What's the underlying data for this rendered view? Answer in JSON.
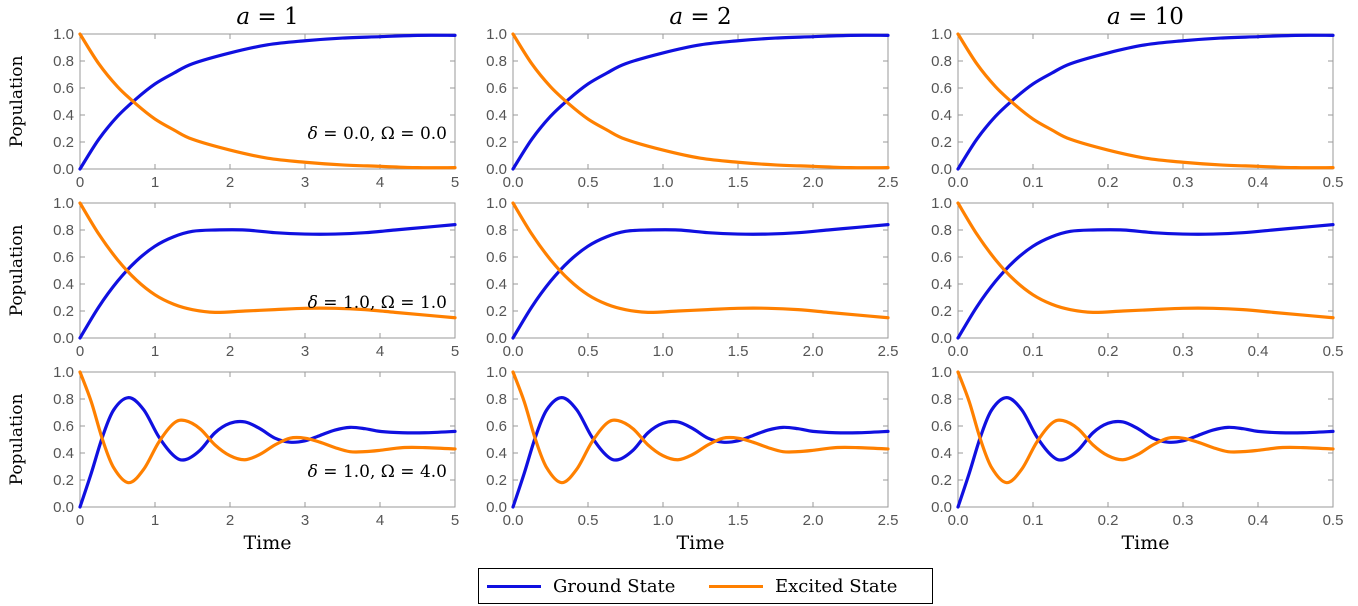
{
  "chart_data": {
    "type": "line",
    "layout": "3x3 grid of line plots",
    "ylabel": "Population",
    "xlabel": "Time",
    "ylim": [
      0.0,
      1.0
    ],
    "yticks": [
      "0.0",
      "0.2",
      "0.4",
      "0.6",
      "0.8",
      "1.0"
    ],
    "columns": [
      {
        "title_var": "a",
        "title_value": "= 1",
        "a": 1,
        "xlim": [
          0,
          5
        ],
        "xticks": [
          0,
          1,
          2,
          3,
          4,
          5
        ],
        "xtick_labels": [
          "0",
          "1",
          "2",
          "3",
          "4",
          "5"
        ]
      },
      {
        "title_var": "a",
        "title_value": "= 2",
        "a": 2,
        "xlim": [
          0,
          2.5
        ],
        "xticks": [
          0,
          0.5,
          1.0,
          1.5,
          2.0,
          2.5
        ],
        "xtick_labels": [
          "0.0",
          "0.5",
          "1.0",
          "1.5",
          "2.0",
          "2.5"
        ]
      },
      {
        "title_var": "a",
        "title_value": "= 10",
        "a": 10,
        "xlim": [
          0,
          0.5
        ],
        "xticks": [
          0,
          0.1,
          0.2,
          0.3,
          0.4,
          0.5
        ],
        "xtick_labels": [
          "0.0",
          "0.1",
          "0.2",
          "0.3",
          "0.4",
          "0.5"
        ]
      }
    ],
    "rows": [
      {
        "annotation_delta": "= 0.0,",
        "annotation_omega": "= 0.0",
        "delta": 0.0,
        "Omega": 0.0,
        "series": [
          {
            "name": "Ground State",
            "color": "#1010e0",
            "x": [
              0.0,
              0.25,
              0.5,
              0.75,
              1.0,
              1.25,
              1.5,
              2.0,
              2.5,
              3.0,
              3.5,
              4.0,
              4.5,
              5.0
            ],
            "y": [
              0.0,
              0.22,
              0.39,
              0.52,
              0.63,
              0.71,
              0.78,
              0.86,
              0.92,
              0.95,
              0.97,
              0.98,
              0.99,
              0.99
            ]
          },
          {
            "name": "Excited State",
            "color": "#ff8000",
            "x": [
              0.0,
              0.25,
              0.5,
              0.75,
              1.0,
              1.25,
              1.5,
              2.0,
              2.5,
              3.0,
              3.5,
              4.0,
              4.5,
              5.0
            ],
            "y": [
              1.0,
              0.78,
              0.61,
              0.48,
              0.37,
              0.29,
              0.22,
              0.14,
              0.08,
              0.05,
              0.03,
              0.02,
              0.01,
              0.01
            ]
          }
        ]
      },
      {
        "annotation_delta": "= 1.0,",
        "annotation_omega": "= 1.0",
        "delta": 1.0,
        "Omega": 1.0,
        "series": [
          {
            "name": "Ground State",
            "color": "#1010e0",
            "x": [
              0.0,
              0.25,
              0.5,
              0.75,
              1.0,
              1.25,
              1.5,
              1.8,
              2.2,
              2.6,
              3.0,
              3.4,
              3.8,
              4.2,
              4.6,
              5.0
            ],
            "y": [
              0.0,
              0.23,
              0.42,
              0.57,
              0.68,
              0.75,
              0.79,
              0.8,
              0.8,
              0.78,
              0.77,
              0.77,
              0.78,
              0.8,
              0.82,
              0.84
            ]
          },
          {
            "name": "Excited State",
            "color": "#ff8000",
            "x": [
              0.0,
              0.25,
              0.5,
              0.75,
              1.0,
              1.25,
              1.5,
              1.8,
              2.2,
              2.6,
              3.0,
              3.4,
              3.8,
              4.2,
              4.6,
              5.0
            ],
            "y": [
              1.0,
              0.77,
              0.58,
              0.43,
              0.32,
              0.25,
              0.21,
              0.19,
              0.2,
              0.21,
              0.22,
              0.22,
              0.21,
              0.19,
              0.17,
              0.15
            ]
          }
        ]
      },
      {
        "annotation_delta": "= 1.0,",
        "annotation_omega": "= 4.0",
        "delta": 1.0,
        "Omega": 4.0,
        "series": [
          {
            "name": "Ground State",
            "color": "#1010e0",
            "x": [
              0.0,
              0.15,
              0.3,
              0.45,
              0.65,
              0.85,
              1.05,
              1.25,
              1.4,
              1.6,
              1.8,
              2.0,
              2.2,
              2.4,
              2.6,
              2.8,
              3.0,
              3.2,
              3.4,
              3.6,
              3.8,
              4.0,
              4.3,
              4.6,
              5.0
            ],
            "y": [
              0.0,
              0.25,
              0.52,
              0.72,
              0.81,
              0.72,
              0.52,
              0.38,
              0.35,
              0.42,
              0.55,
              0.62,
              0.63,
              0.58,
              0.51,
              0.48,
              0.49,
              0.53,
              0.57,
              0.59,
              0.58,
              0.56,
              0.55,
              0.55,
              0.56
            ]
          },
          {
            "name": "Excited State",
            "color": "#ff8000",
            "x": [
              0.0,
              0.15,
              0.3,
              0.45,
              0.65,
              0.85,
              1.05,
              1.25,
              1.4,
              1.6,
              1.8,
              2.0,
              2.2,
              2.4,
              2.6,
              2.8,
              3.0,
              3.2,
              3.4,
              3.6,
              3.8,
              4.0,
              4.3,
              4.6,
              5.0
            ],
            "y": [
              1.0,
              0.78,
              0.5,
              0.29,
              0.18,
              0.28,
              0.48,
              0.62,
              0.64,
              0.58,
              0.46,
              0.38,
              0.35,
              0.39,
              0.46,
              0.51,
              0.51,
              0.48,
              0.44,
              0.41,
              0.41,
              0.42,
              0.44,
              0.44,
              0.43
            ]
          }
        ]
      }
    ],
    "legend": {
      "position": "bottom-center",
      "entries": [
        {
          "name": "Ground State",
          "color": "#1010e0"
        },
        {
          "name": "Excited State",
          "color": "#ff8000"
        }
      ]
    },
    "grid": false
  }
}
